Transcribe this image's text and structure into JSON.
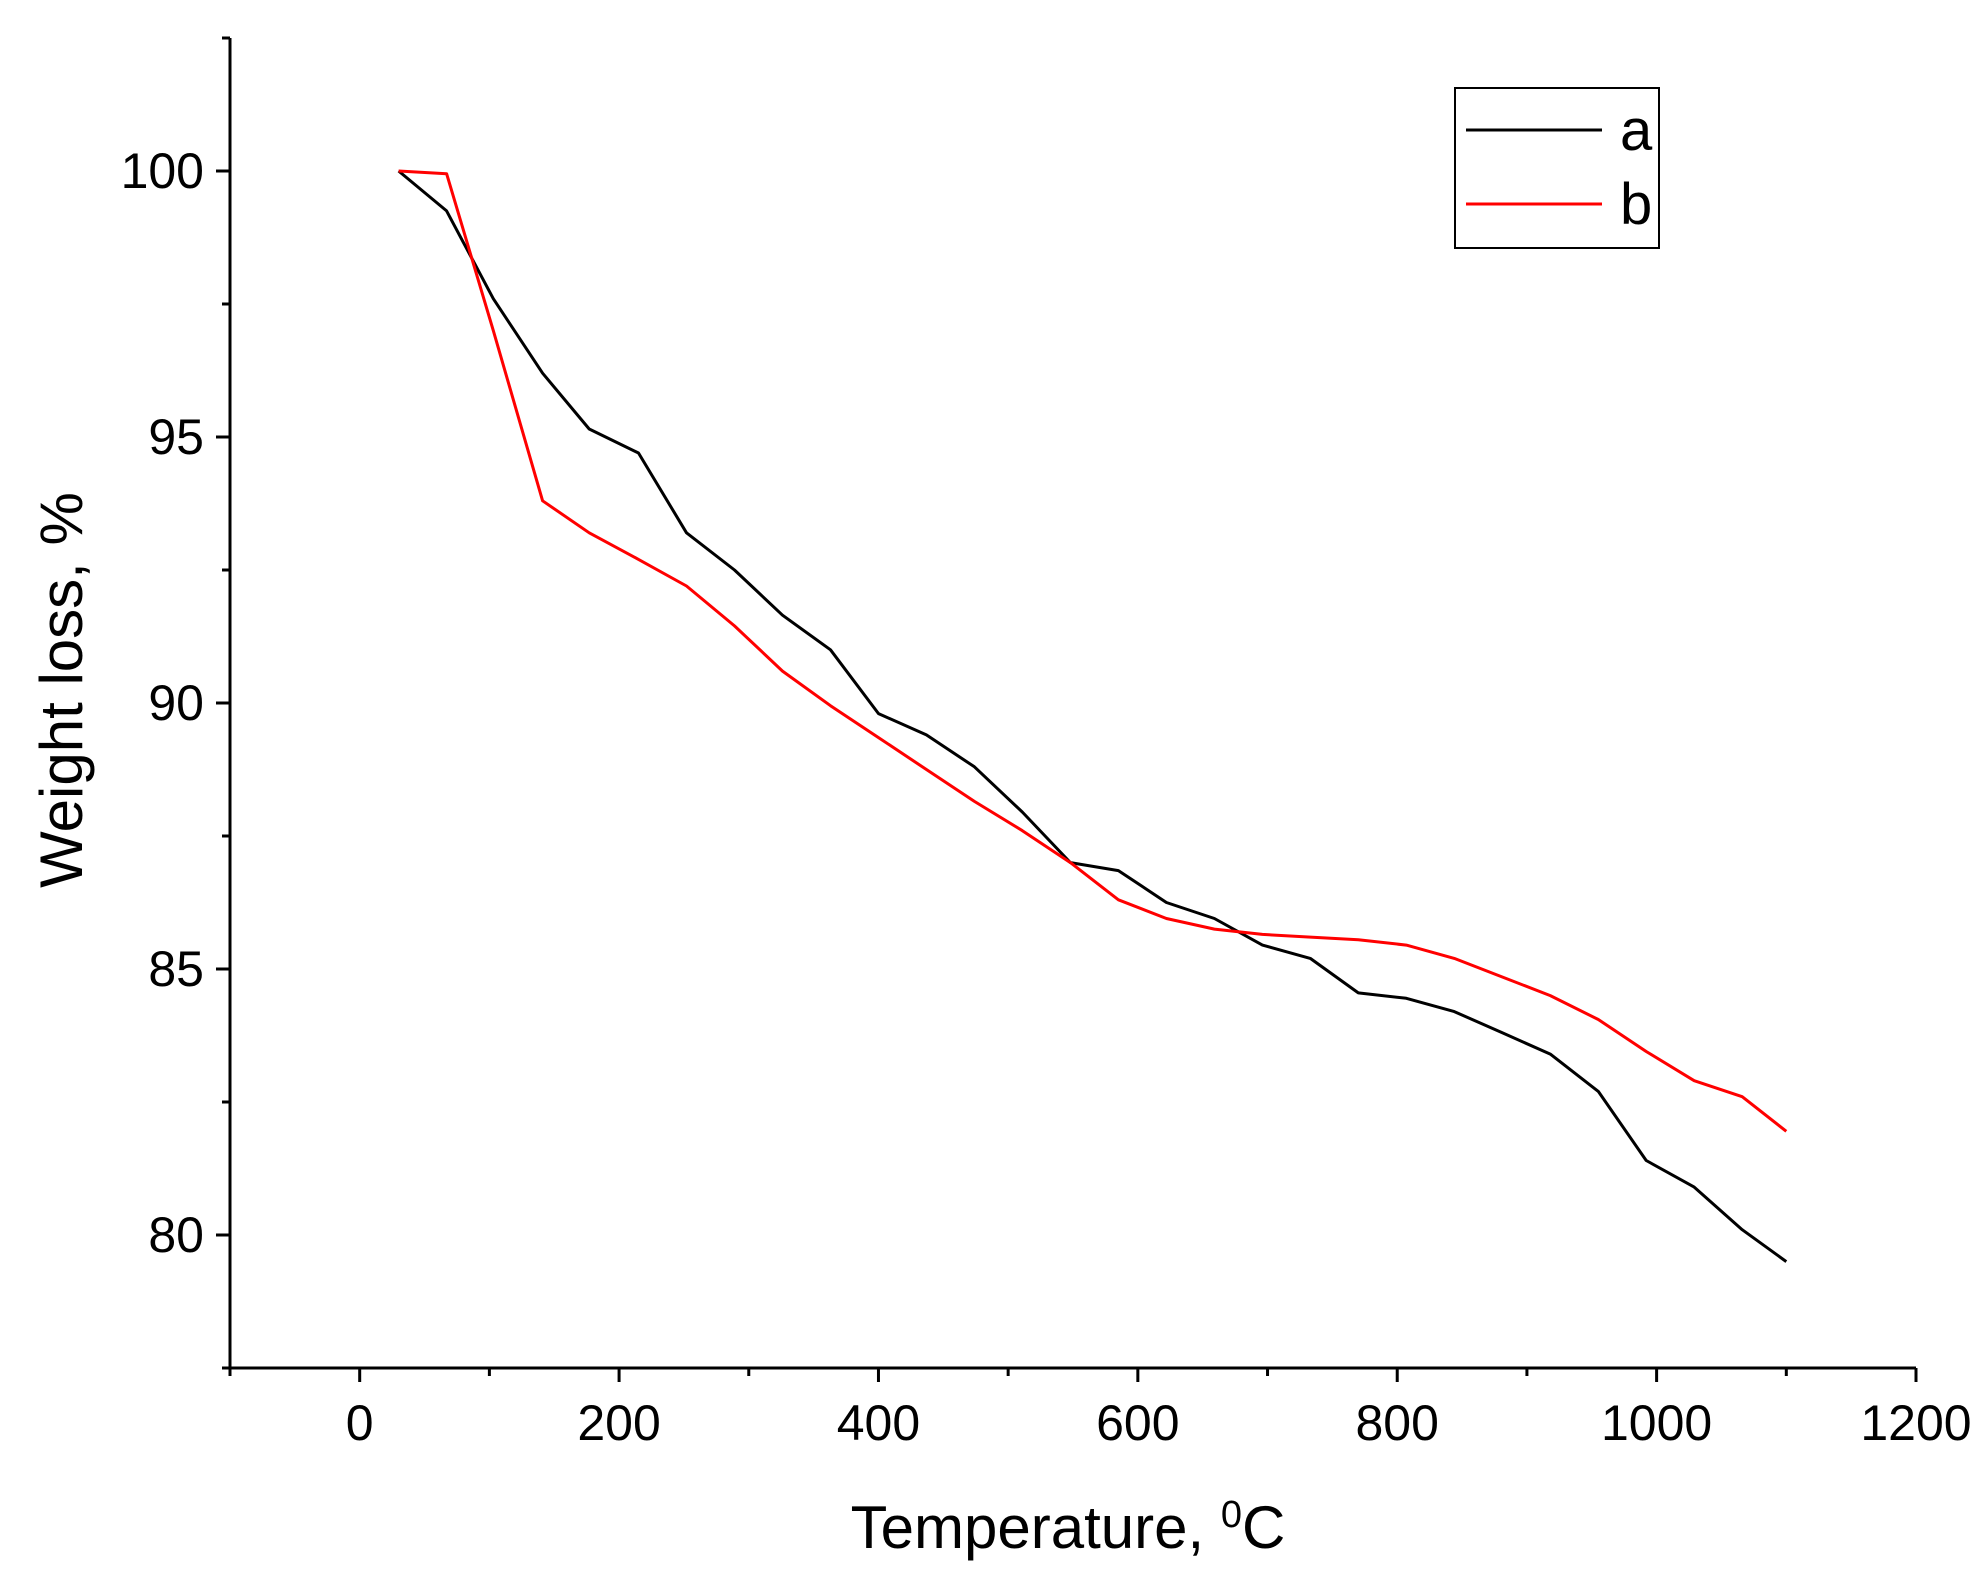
{
  "chart_data": {
    "type": "line",
    "title": "",
    "xlabel": "Temperature, ",
    "xlabel_unit_sup": "0",
    "xlabel_unit": "C",
    "ylabel": "Weight loss, %",
    "xlim": [
      -100,
      1200
    ],
    "ylim": [
      77.5,
      102.5
    ],
    "x_ticks": [
      0,
      200,
      400,
      600,
      800,
      1000,
      1200
    ],
    "x_tick_labels": [
      "0",
      "200",
      "400",
      "600",
      "800",
      "1000",
      "1200"
    ],
    "y_ticks": [
      80,
      85,
      90,
      95,
      100
    ],
    "y_tick_labels": [
      "80",
      "85",
      "90",
      "95",
      "100"
    ],
    "grid": false,
    "legend_position": "top-right",
    "series": [
      {
        "name": "a",
        "color": "#000000",
        "x": [
          30,
          67,
          103,
          141,
          177,
          215,
          252,
          289,
          326,
          363,
          400,
          437,
          474,
          511,
          548,
          585,
          622,
          659,
          696,
          733,
          770,
          807,
          844,
          881,
          918,
          955,
          992,
          1029,
          1066,
          1100
        ],
        "y": [
          100.0,
          99.25,
          97.6,
          96.2,
          95.15,
          94.7,
          93.2,
          92.5,
          91.65,
          91.0,
          89.8,
          89.4,
          88.8,
          87.95,
          87.0,
          86.85,
          86.25,
          85.95,
          85.45,
          85.2,
          84.55,
          84.45,
          84.2,
          83.8,
          83.4,
          82.7,
          81.4,
          80.9,
          80.1,
          79.5
        ]
      },
      {
        "name": "b",
        "color": "#ff0000",
        "x": [
          30,
          67,
          103,
          141,
          177,
          215,
          252,
          289,
          326,
          363,
          400,
          437,
          474,
          511,
          548,
          585,
          622,
          659,
          696,
          733,
          770,
          807,
          844,
          881,
          918,
          955,
          992,
          1029,
          1066,
          1100
        ],
        "y": [
          100.0,
          99.95,
          97.0,
          93.8,
          93.2,
          92.7,
          92.2,
          91.45,
          90.6,
          89.95,
          89.35,
          88.75,
          88.15,
          87.6,
          87.0,
          86.3,
          85.95,
          85.75,
          85.65,
          85.6,
          85.55,
          85.45,
          85.2,
          84.85,
          84.5,
          84.05,
          83.45,
          82.9,
          82.6,
          81.95
        ]
      }
    ]
  }
}
